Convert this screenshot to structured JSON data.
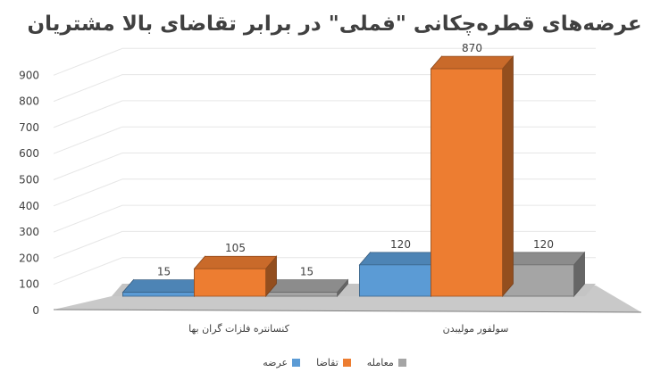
{
  "chart_data": {
    "type": "bar",
    "title": "عرضه‌های قطره‌چکانی \"فملی\" در برابر تقاضای بالا مشتریان",
    "categories": [
      "کنسانتره فلزات گران بها",
      "سولفور مولیبدن"
    ],
    "series": [
      {
        "name": "عرضه",
        "values": [
          15,
          120
        ],
        "color": "#5b9bd5"
      },
      {
        "name": "تقاضا",
        "values": [
          105,
          870
        ],
        "color": "#ed7d31"
      },
      {
        "name": "معامله",
        "values": [
          15,
          120
        ],
        "color": "#a5a5a5"
      }
    ],
    "ylim": [
      0,
      900
    ],
    "yticks": [
      0,
      100,
      200,
      300,
      400,
      500,
      600,
      700,
      800,
      900
    ],
    "grid": true,
    "legend_position": "bottom",
    "data_labels": true
  }
}
